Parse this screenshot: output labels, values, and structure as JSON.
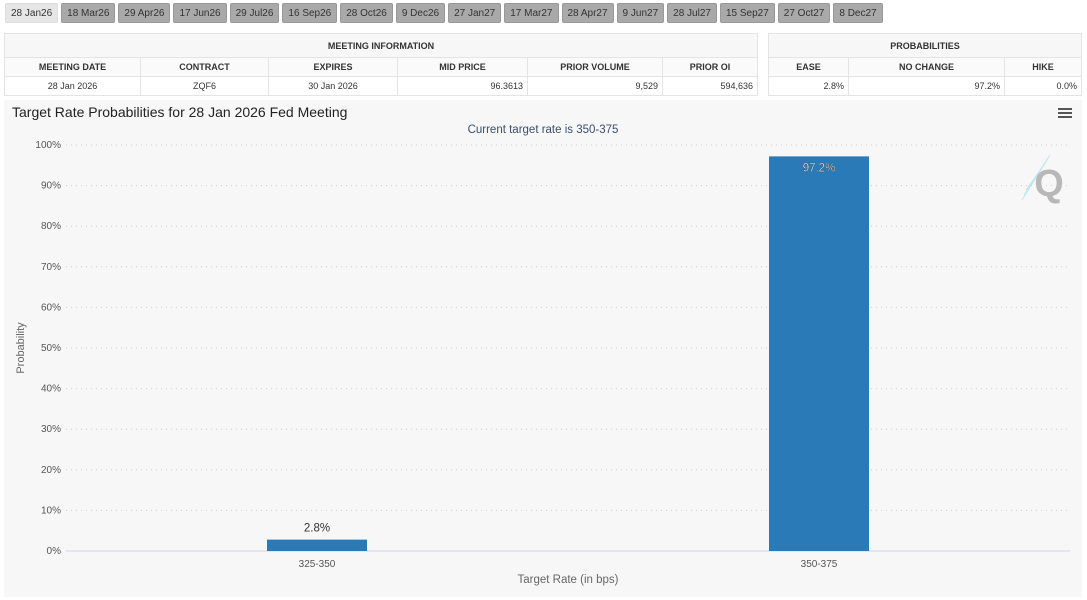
{
  "tabs": [
    "28 Jan26",
    "18 Mar26",
    "29 Apr26",
    "17 Jun26",
    "29 Jul26",
    "16 Sep26",
    "28 Oct26",
    "9 Dec26",
    "27 Jan27",
    "17 Mar27",
    "28 Apr27",
    "9 Jun27",
    "28 Jul27",
    "15 Sep27",
    "27 Oct27",
    "8 Dec27"
  ],
  "active_tab": "28 Jan26",
  "meeting": {
    "title": "MEETING INFORMATION",
    "headers": [
      "MEETING DATE",
      "CONTRACT",
      "EXPIRES",
      "MID PRICE",
      "PRIOR VOLUME",
      "PRIOR OI"
    ],
    "values": [
      "28 Jan 2026",
      "ZQF6",
      "30 Jan 2026",
      "96.3613",
      "9,529",
      "594,636"
    ]
  },
  "probabilities": {
    "title": "PROBABILITIES",
    "headers": [
      "EASE",
      "NO CHANGE",
      "HIKE"
    ],
    "values": [
      "2.8%",
      "97.2%",
      "0.0%"
    ]
  },
  "chart_data": {
    "type": "bar",
    "title": "Target Rate Probabilities for 28 Jan 2026 Fed Meeting",
    "subtitle": "Current target rate is 350-375",
    "xlabel": "Target Rate (in bps)",
    "ylabel": "Probability",
    "categories": [
      "325-350",
      "350-375"
    ],
    "values": [
      2.8,
      97.2
    ],
    "data_labels": [
      "2.8%",
      "97.2%"
    ],
    "ylim": [
      0,
      100
    ],
    "yticks": [
      "0%",
      "10%",
      "20%",
      "30%",
      "40%",
      "50%",
      "60%",
      "70%",
      "80%",
      "90%",
      "100%"
    ],
    "grid": true,
    "bar_color": "#2a7ab8"
  }
}
